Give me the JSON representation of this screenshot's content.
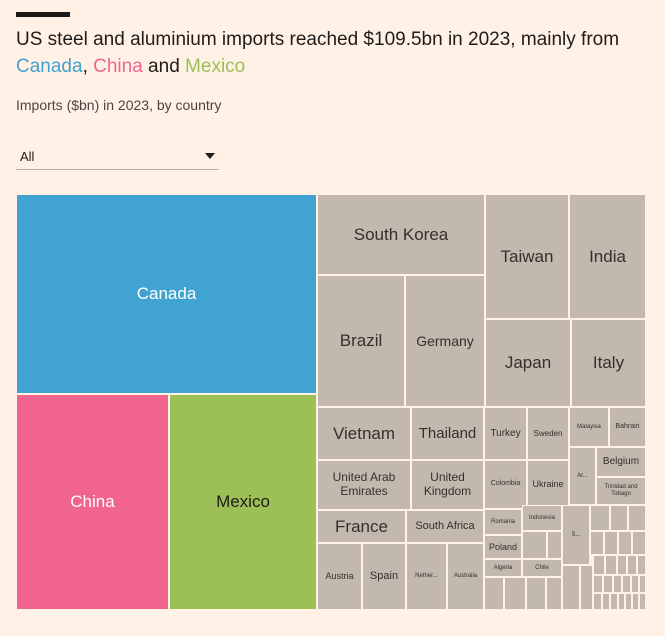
{
  "header": {
    "title_prefix": "US steel and aluminium imports reached $109.5bn in 2023, mainly from ",
    "title_canada": "Canada",
    "title_comma": ", ",
    "title_china": "China",
    "title_and": " and ",
    "title_mexico": "Mexico",
    "subtitle": "Imports ($bn) in 2023, by country"
  },
  "filter": {
    "selected": "All"
  },
  "colors": {
    "canada": "#41A3D1",
    "china": "#F0648E",
    "mexico": "#9CBF56",
    "other": "#C2B8AE",
    "background": "#FFF1E5"
  },
  "chart_data": {
    "type": "treemap",
    "title": "US steel and aluminium imports reached $109.5bn in 2023, mainly from Canada, China and Mexico",
    "subtitle": "Imports ($bn) in 2023, by country",
    "total_bn": 109.5,
    "highlighted": [
      "Canada",
      "China",
      "Mexico"
    ],
    "labels": [
      "Canada",
      "China",
      "Mexico",
      "South Korea",
      "Taiwan",
      "India",
      "Brazil",
      "Germany",
      "Japan",
      "Italy",
      "Vietnam",
      "Thailand",
      "Turkey",
      "Sweden",
      "Malaysia",
      "Bahrain",
      "United Arab Emirates",
      "United Kingdom",
      "Colombia",
      "Ukraine",
      "Ar...",
      "Belgium",
      "Trinidad and Tobago",
      "France",
      "South Africa",
      "Romania",
      "Indonesia",
      "Poland",
      "S...",
      "Austria",
      "Spain",
      "Nether...",
      "Australia",
      "Algeria",
      "Chile"
    ]
  }
}
